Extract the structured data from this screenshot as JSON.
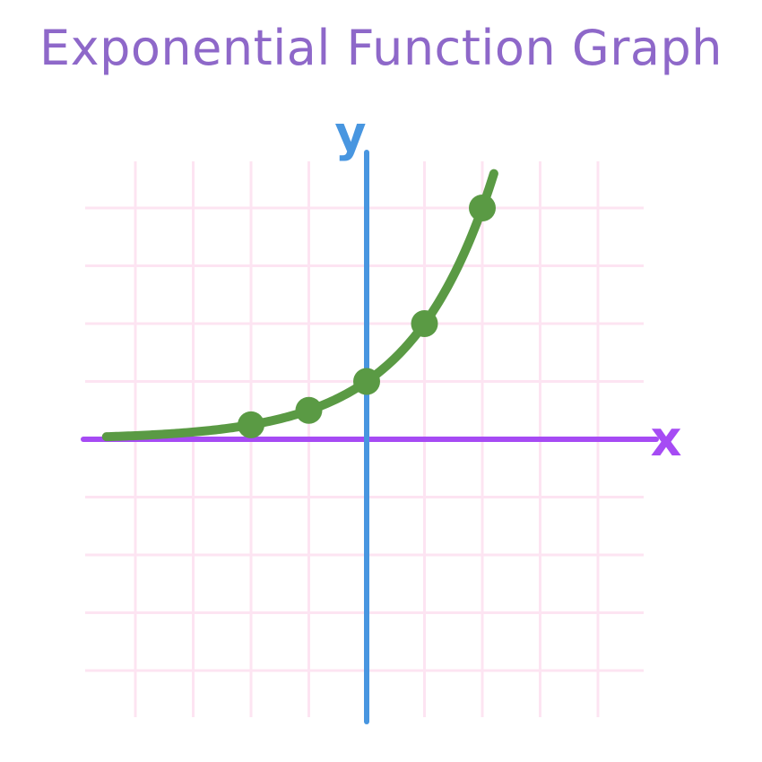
{
  "title": "Exponential Function Graph",
  "colors": {
    "title": "#8e68c9",
    "grid": "#fde4f2",
    "x_axis": "#a64bf4",
    "y_axis": "#4896e0",
    "curve": "#5a9a44"
  },
  "chart_data": {
    "type": "line",
    "title": "Exponential Function Graph",
    "xlabel": "x",
    "ylabel": "y",
    "xlim": [
      -4.5,
      5
    ],
    "ylim": [
      -4.9,
      5
    ],
    "grid": true,
    "series": [
      {
        "function": "y = 2^x",
        "curve_x_range": [
          -4.5,
          2.2
        ],
        "points": [
          {
            "x": -2,
            "y": 0.25
          },
          {
            "x": -1,
            "y": 0.5
          },
          {
            "x": 0,
            "y": 1
          },
          {
            "x": 1,
            "y": 2
          },
          {
            "x": 2,
            "y": 4
          }
        ]
      }
    ]
  }
}
